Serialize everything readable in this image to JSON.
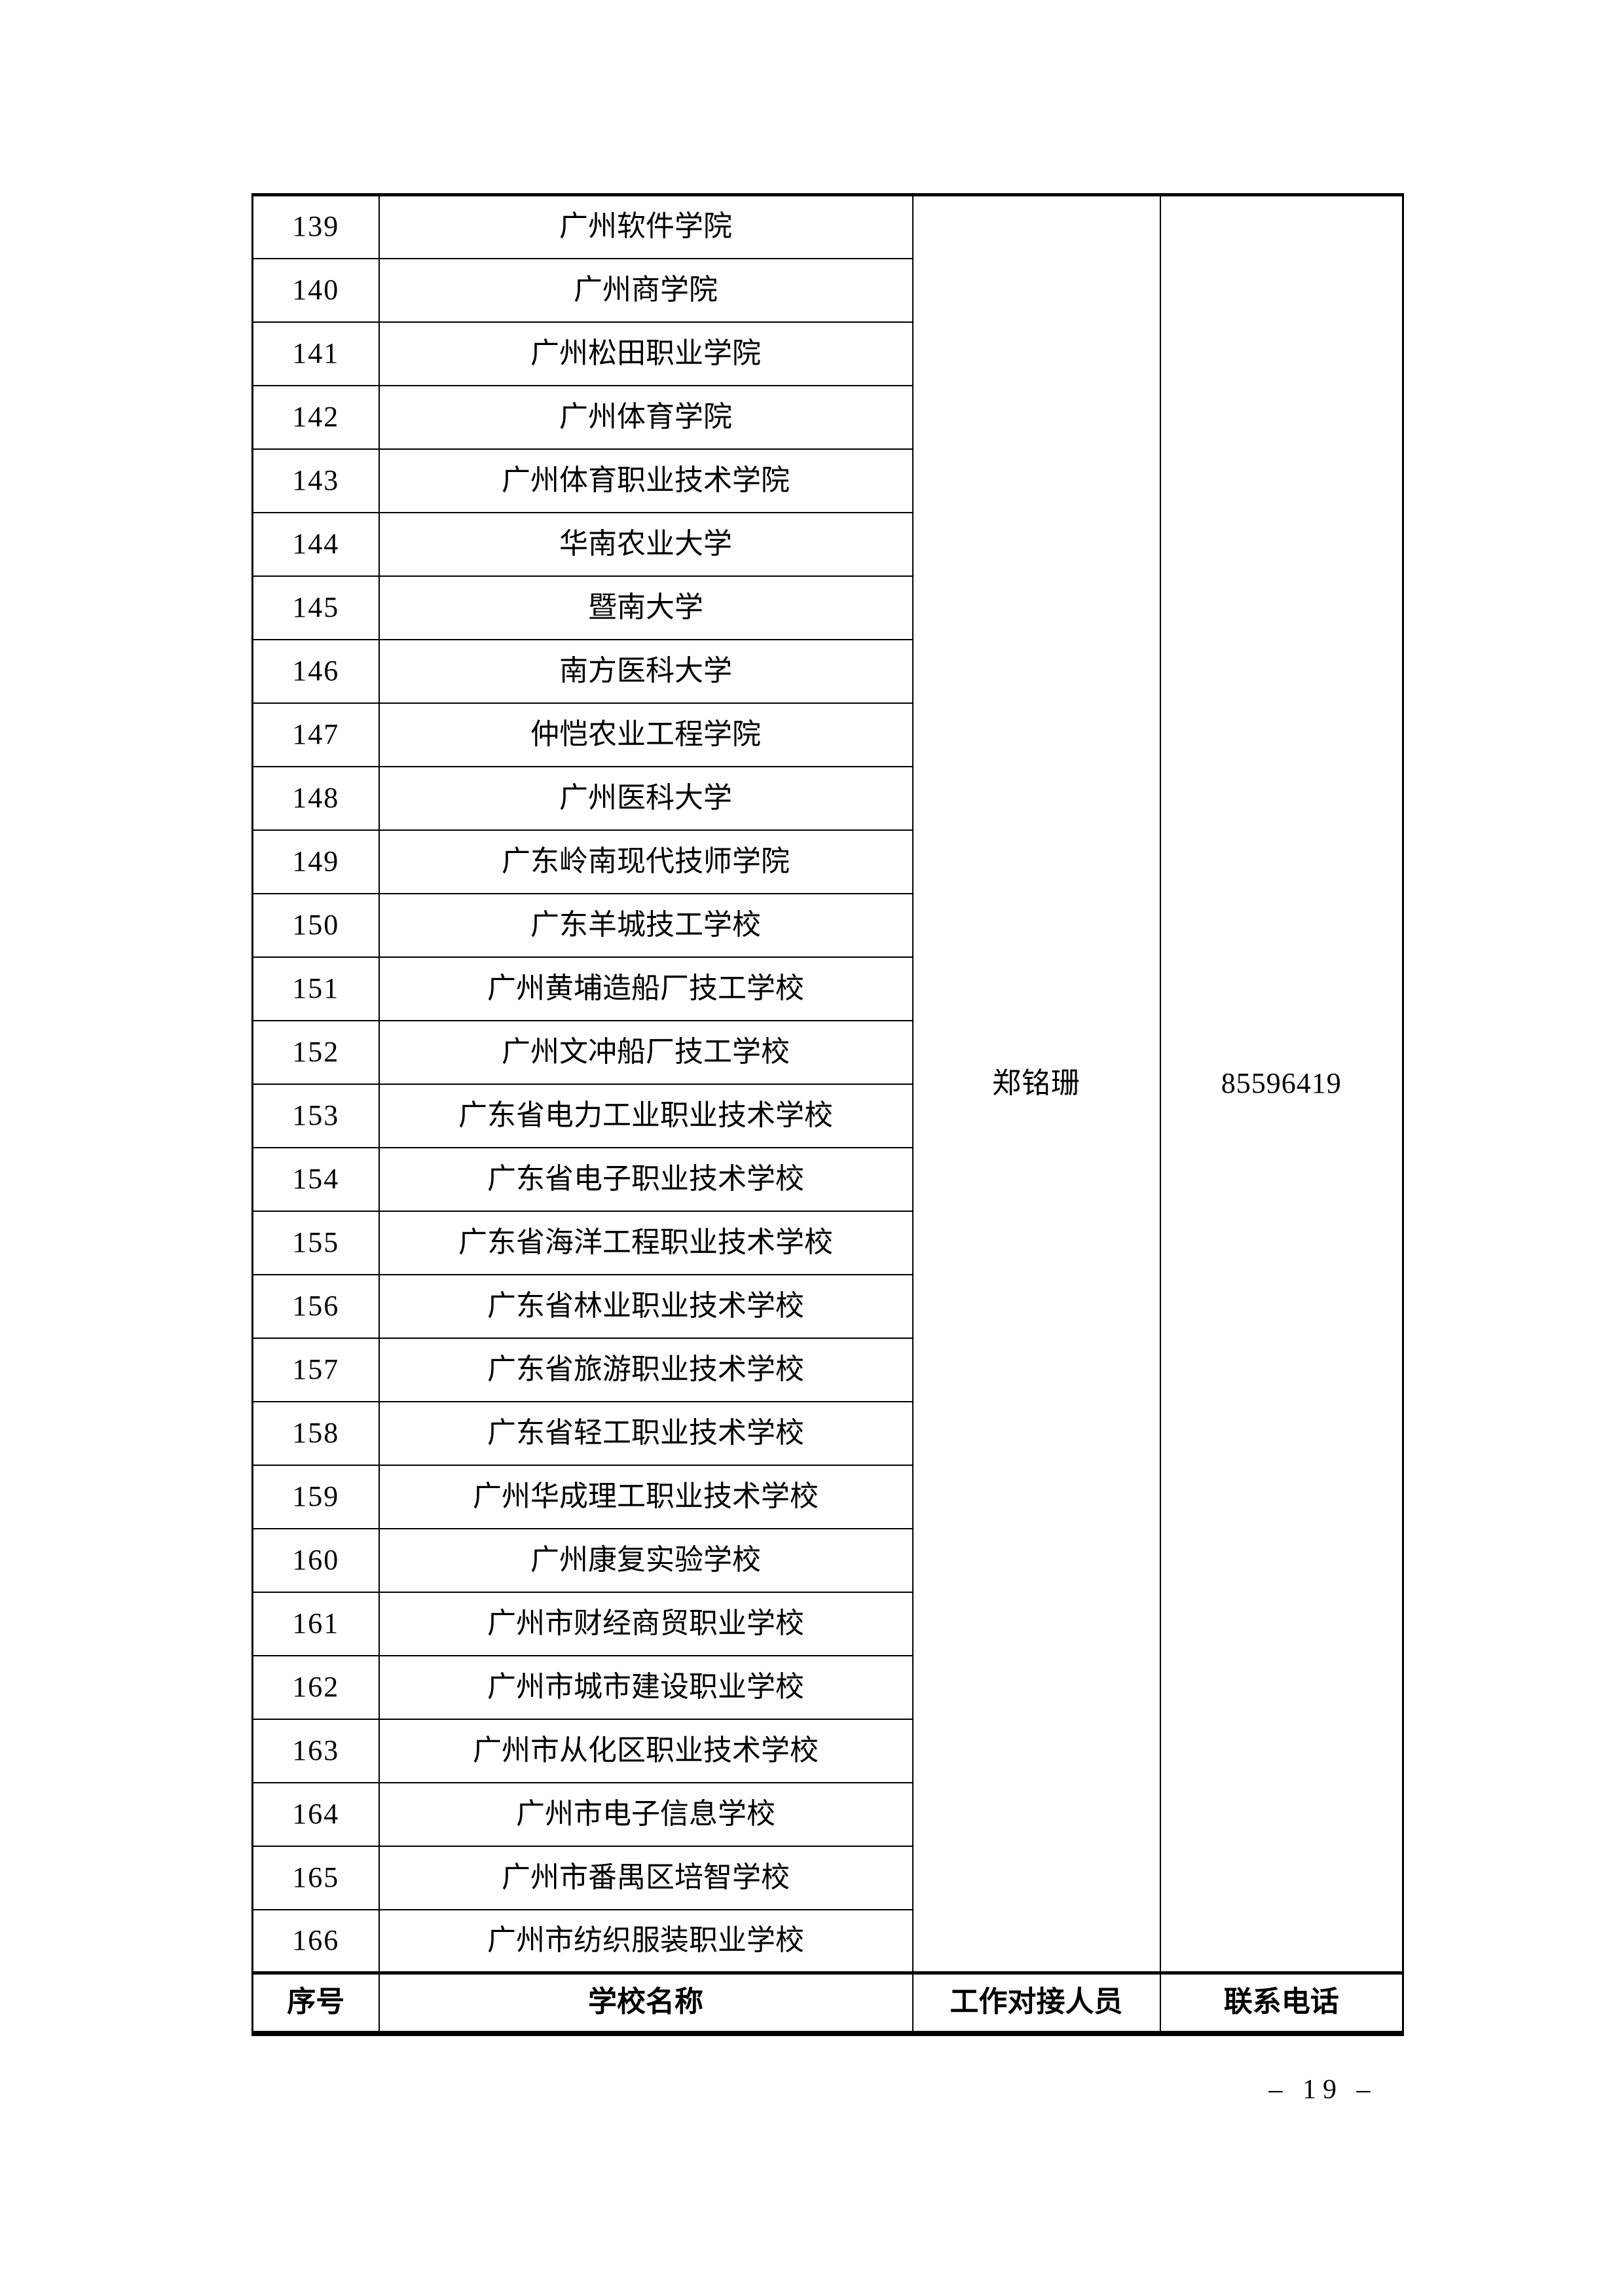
{
  "page": {
    "number_text": "– 19 –"
  },
  "table": {
    "footer_headers": {
      "no": "序号",
      "school": "学校名称",
      "contact": "工作对接人员",
      "phone": "联系电话"
    },
    "contact": {
      "person": "郑铭珊",
      "phone": "85596419"
    },
    "rows": [
      {
        "no": "139",
        "school": "广州软件学院"
      },
      {
        "no": "140",
        "school": "广州商学院"
      },
      {
        "no": "141",
        "school": "广州松田职业学院"
      },
      {
        "no": "142",
        "school": "广州体育学院"
      },
      {
        "no": "143",
        "school": "广州体育职业技术学院"
      },
      {
        "no": "144",
        "school": "华南农业大学"
      },
      {
        "no": "145",
        "school": "暨南大学"
      },
      {
        "no": "146",
        "school": "南方医科大学"
      },
      {
        "no": "147",
        "school": "仲恺农业工程学院"
      },
      {
        "no": "148",
        "school": "广州医科大学"
      },
      {
        "no": "149",
        "school": "广东岭南现代技师学院"
      },
      {
        "no": "150",
        "school": "广东羊城技工学校"
      },
      {
        "no": "151",
        "school": "广州黄埔造船厂技工学校"
      },
      {
        "no": "152",
        "school": "广州文冲船厂技工学校"
      },
      {
        "no": "153",
        "school": "广东省电力工业职业技术学校"
      },
      {
        "no": "154",
        "school": "广东省电子职业技术学校"
      },
      {
        "no": "155",
        "school": "广东省海洋工程职业技术学校"
      },
      {
        "no": "156",
        "school": "广东省林业职业技术学校"
      },
      {
        "no": "157",
        "school": "广东省旅游职业技术学校"
      },
      {
        "no": "158",
        "school": "广东省轻工职业技术学校"
      },
      {
        "no": "159",
        "school": "广州华成理工职业技术学校"
      },
      {
        "no": "160",
        "school": "广州康复实验学校"
      },
      {
        "no": "161",
        "school": "广州市财经商贸职业学校"
      },
      {
        "no": "162",
        "school": "广州市城市建设职业学校"
      },
      {
        "no": "163",
        "school": "广州市从化区职业技术学校"
      },
      {
        "no": "164",
        "school": "广州市电子信息学校"
      },
      {
        "no": "165",
        "school": "广州市番禺区培智学校"
      },
      {
        "no": "166",
        "school": "广州市纺织服装职业学校"
      }
    ]
  }
}
